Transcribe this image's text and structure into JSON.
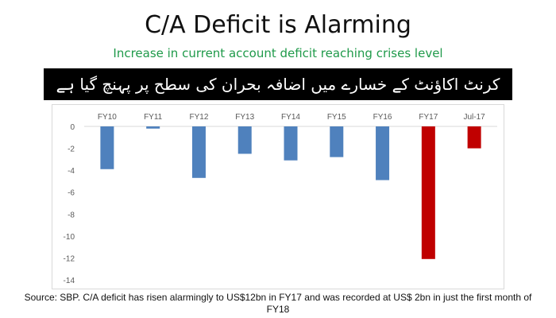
{
  "header": {
    "title": "C/A Deficit is Alarming",
    "subtitle": "Increase in current account deficit reaching crises level"
  },
  "banner": {
    "text": "کرنٹ اکاؤنٹ کے خسارے میں اضافہ بحران کی سطح پر پہنچ گیا ہے",
    "background": "#000000"
  },
  "chart_data": {
    "type": "bar",
    "categories": [
      "FY10",
      "FY11",
      "FY12",
      "FY13",
      "FY14",
      "FY15",
      "FY16",
      "FY17",
      "Jul-17"
    ],
    "values": [
      -3.9,
      -0.2,
      -4.7,
      -2.5,
      -3.1,
      -2.8,
      -4.9,
      -12.1,
      -2.0
    ],
    "colors": [
      "#4f81bd",
      "#4f81bd",
      "#4f81bd",
      "#4f81bd",
      "#4f81bd",
      "#4f81bd",
      "#4f81bd",
      "#c00000",
      "#c00000"
    ],
    "ylim": [
      -14,
      0
    ],
    "yticks": [
      0,
      -2,
      -4,
      -6,
      -8,
      -10,
      -12,
      -14
    ],
    "grid": false,
    "title": "",
    "xlabel": "",
    "ylabel": ""
  },
  "footer": {
    "source": "Source: SBP. C/A deficit has risen alarmingly to US$12bn in FY17 and was recorded at US$ 2bn in just the first month of FY18"
  }
}
